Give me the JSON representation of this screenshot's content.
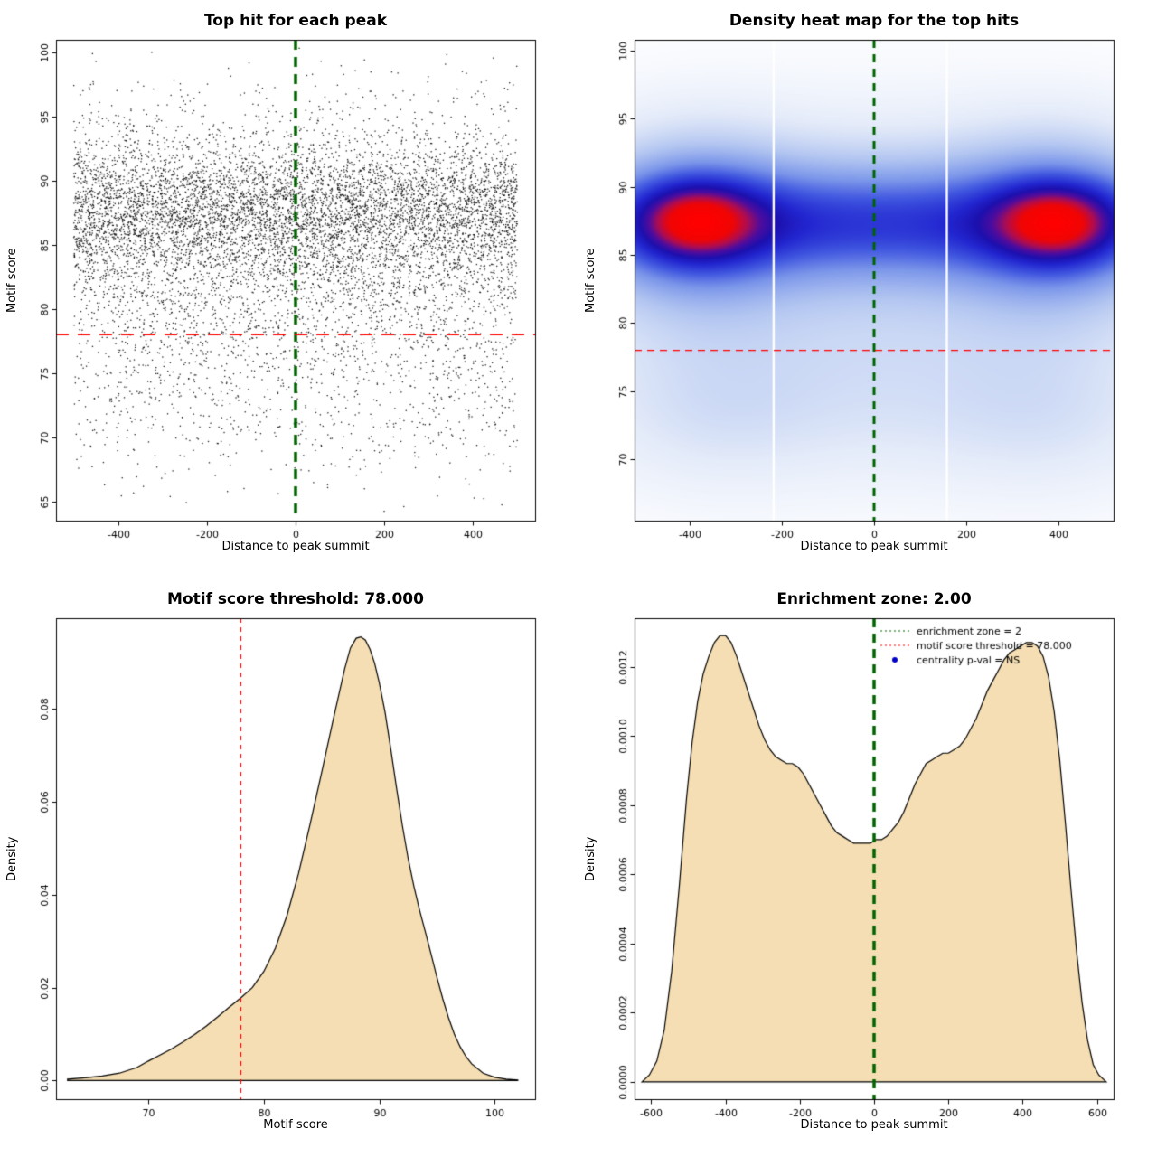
{
  "page": {
    "background": "#ffffff"
  },
  "chart_data": [
    {
      "type": "scatter",
      "title": "Top hit for each peak",
      "xlabel": "Distance to peak summit",
      "ylabel": "Motif score",
      "xlim": [
        -540,
        540
      ],
      "ylim": [
        63.5,
        101
      ],
      "xticks": {
        "values": [
          -400,
          -200,
          0,
          200,
          400
        ],
        "labels": [
          "-400",
          "-200",
          "0",
          "200",
          "400"
        ]
      },
      "yticks": {
        "values": [
          65,
          70,
          75,
          80,
          85,
          90,
          95,
          100
        ],
        "labels": [
          "65",
          "70",
          "75",
          "80",
          "85",
          "90",
          "95",
          "100"
        ]
      },
      "point_color": "#000000",
      "n_points": 9000,
      "seed": 7,
      "x_range": [
        -500,
        500
      ],
      "y_components": [
        {
          "weight": 0.6,
          "mean": 87.9,
          "sd": 2.7
        },
        {
          "weight": 0.22,
          "mean": 83.5,
          "sd": 3.4
        },
        {
          "weight": 0.08,
          "mean": 77.5,
          "sd": 3.2
        },
        {
          "weight": 0.06,
          "mean": 72.5,
          "sd": 3.2
        },
        {
          "weight": 0.04,
          "mean": 94.5,
          "sd": 2.5
        }
      ],
      "y_clip": [
        63.8,
        100.6
      ],
      "vline": {
        "x": 0,
        "color": "#006400",
        "width": 3.5,
        "dash": [
          11,
          8
        ]
      },
      "hline": {
        "y": 78,
        "color": "#ff0000",
        "width": 1.6,
        "dash": [
          14,
          10
        ]
      }
    },
    {
      "type": "heatmap",
      "title": "Density heat map for the top hits",
      "xlabel": "Distance to peak summit",
      "ylabel": "Motif score",
      "xlim": [
        -520,
        520
      ],
      "ylim": [
        65.5,
        100.8
      ],
      "xticks": {
        "values": [
          -400,
          -200,
          0,
          200,
          400
        ],
        "labels": [
          "-400",
          "-200",
          "0",
          "200",
          "400"
        ]
      },
      "yticks": {
        "values": [
          70,
          75,
          80,
          85,
          90,
          95,
          100
        ],
        "labels": [
          "70",
          "75",
          "80",
          "85",
          "90",
          "95",
          "100"
        ]
      },
      "gamma": 0.7,
      "stops": [
        [
          0.0,
          "#ffffff"
        ],
        [
          0.15,
          "#e4ebf9"
        ],
        [
          0.3,
          "#b3c6f1"
        ],
        [
          0.45,
          "#7b96ea"
        ],
        [
          0.57,
          "#4056e0"
        ],
        [
          0.67,
          "#2226d0"
        ],
        [
          0.74,
          "#1c10ae"
        ],
        [
          0.8,
          "#500c9e"
        ],
        [
          0.86,
          "#b00d50"
        ],
        [
          0.92,
          "#f00505"
        ],
        [
          1.0,
          "#ff0000"
        ]
      ],
      "components": [
        {
          "x": -390,
          "y": 87.5,
          "sx": 95,
          "sy": 2.1,
          "amp": 0.62
        },
        {
          "x": 400,
          "y": 87.4,
          "sx": 95,
          "sy": 2.1,
          "amp": 0.62
        },
        {
          "x": -385,
          "y": 87.2,
          "sx": 145,
          "sy": 4.2,
          "amp": 0.4
        },
        {
          "x": 395,
          "y": 87.1,
          "sx": 145,
          "sy": 4.2,
          "amp": 0.4
        },
        {
          "x": 0,
          "y": 87.4,
          "sx": 520,
          "sy": 2.7,
          "amp": 0.6
        },
        {
          "x": 0,
          "y": 86.3,
          "sx": 480,
          "sy": 5.6,
          "amp": 0.25
        },
        {
          "x": 0,
          "y": 74.5,
          "sx": 470,
          "sy": 4.6,
          "amp": 0.13
        },
        {
          "x": -350,
          "y": 73.8,
          "sx": 160,
          "sy": 4.0,
          "amp": 0.07
        },
        {
          "x": 380,
          "y": 73.2,
          "sx": 160,
          "sy": 4.0,
          "amp": 0.07
        }
      ],
      "gap_lines": [
        -218,
        158
      ],
      "vline": {
        "x": 0,
        "color": "#006400",
        "width": 3,
        "dash": [
          9,
          7
        ]
      },
      "hline": {
        "y": 78,
        "color": "#ff0000",
        "width": 1.4,
        "dash": [
          8,
          6
        ]
      }
    },
    {
      "type": "area",
      "title": "Motif score threshold: 78.000",
      "xlabel": "Motif score",
      "ylabel": "Density",
      "xlim": [
        62,
        103.5
      ],
      "ylim": [
        -0.004,
        0.0995
      ],
      "xticks": {
        "values": [
          70,
          80,
          90,
          100
        ],
        "labels": [
          "70",
          "80",
          "90",
          "100"
        ]
      },
      "yticks": {
        "values": [
          0.0,
          0.02,
          0.04,
          0.06,
          0.08
        ],
        "labels": [
          "0.00",
          "0.02",
          "0.04",
          "0.06",
          "0.08"
        ]
      },
      "fill": "#f5deb3",
      "stroke": "#000000",
      "vline": {
        "x": 78,
        "color": "#ff0000",
        "width": 1.4,
        "dash": [
          5,
          5
        ]
      },
      "points": [
        [
          63,
          0.0003
        ],
        [
          64.5,
          0.0006
        ],
        [
          66,
          0.001
        ],
        [
          67.5,
          0.0016
        ],
        [
          69,
          0.0028
        ],
        [
          70,
          0.0042
        ],
        [
          71,
          0.0055
        ],
        [
          72,
          0.0068
        ],
        [
          73,
          0.0083
        ],
        [
          74,
          0.0099
        ],
        [
          75,
          0.0117
        ],
        [
          76,
          0.0137
        ],
        [
          77,
          0.0158
        ],
        [
          78,
          0.0178
        ],
        [
          79,
          0.02
        ],
        [
          80,
          0.0235
        ],
        [
          81,
          0.0285
        ],
        [
          82,
          0.0355
        ],
        [
          83,
          0.0445
        ],
        [
          84,
          0.0551
        ],
        [
          85,
          0.0662
        ],
        [
          86,
          0.0776
        ],
        [
          86.5,
          0.0831
        ],
        [
          87,
          0.0886
        ],
        [
          87.5,
          0.0931
        ],
        [
          88,
          0.0952
        ],
        [
          88.4,
          0.0955
        ],
        [
          88.8,
          0.0948
        ],
        [
          89.2,
          0.0928
        ],
        [
          89.6,
          0.0898
        ],
        [
          90,
          0.0856
        ],
        [
          90.5,
          0.0793
        ],
        [
          91,
          0.0713
        ],
        [
          91.5,
          0.0629
        ],
        [
          92,
          0.0549
        ],
        [
          92.5,
          0.0478
        ],
        [
          93,
          0.0418
        ],
        [
          93.5,
          0.0366
        ],
        [
          94,
          0.0319
        ],
        [
          94.5,
          0.0271
        ],
        [
          95,
          0.0222
        ],
        [
          95.5,
          0.0176
        ],
        [
          96,
          0.0135
        ],
        [
          96.5,
          0.01
        ],
        [
          97,
          0.0073
        ],
        [
          97.5,
          0.0052
        ],
        [
          98,
          0.0036
        ],
        [
          99,
          0.0016
        ],
        [
          100,
          0.0007
        ],
        [
          101,
          0.0003
        ],
        [
          102,
          0.0001
        ]
      ]
    },
    {
      "type": "area",
      "title": "Enrichment zone: 2.00",
      "xlabel": "Distance to peak summit",
      "ylabel": "Density",
      "xlim": [
        -645,
        645
      ],
      "ylim": [
        -5e-05,
        0.00134
      ],
      "xticks": {
        "values": [
          -600,
          -400,
          -200,
          0,
          200,
          400,
          600
        ],
        "labels": [
          "-600",
          "-400",
          "-200",
          "0",
          "200",
          "400",
          "600"
        ]
      },
      "yticks": {
        "values": [
          0.0,
          0.0002,
          0.0004,
          0.0006,
          0.0008,
          0.001,
          0.0012
        ],
        "labels": [
          "0.0000",
          "0.0002",
          "0.0004",
          "0.0006",
          "0.0008",
          "0.0010",
          "0.0012"
        ]
      },
      "fill": "#f5deb3",
      "stroke": "#000000",
      "vline": {
        "x": 0,
        "color": "#006400",
        "width": 3.5,
        "dash": [
          10,
          7
        ]
      },
      "legend": [
        {
          "label": "enrichment zone = 2",
          "color": "#006400",
          "marker": "dotted-line"
        },
        {
          "label": "motif score threshold = 78.000",
          "color": "#ff0000",
          "marker": "dotted-line"
        },
        {
          "label": "centrality p-val = NS",
          "color": "#0000cd",
          "marker": "point"
        }
      ],
      "points": [
        [
          -625,
          0.0
        ],
        [
          -605,
          2e-05
        ],
        [
          -585,
          6e-05
        ],
        [
          -565,
          0.00015
        ],
        [
          -545,
          0.00032
        ],
        [
          -525,
          0.00056
        ],
        [
          -505,
          0.00082
        ],
        [
          -490,
          0.00098
        ],
        [
          -475,
          0.0011
        ],
        [
          -460,
          0.00118
        ],
        [
          -445,
          0.00123
        ],
        [
          -430,
          0.00127
        ],
        [
          -415,
          0.00129
        ],
        [
          -400,
          0.00129
        ],
        [
          -385,
          0.00127
        ],
        [
          -370,
          0.00123
        ],
        [
          -355,
          0.00118
        ],
        [
          -340,
          0.00113
        ],
        [
          -325,
          0.00108
        ],
        [
          -310,
          0.00103
        ],
        [
          -295,
          0.00099
        ],
        [
          -280,
          0.00096
        ],
        [
          -265,
          0.00094
        ],
        [
          -250,
          0.00093
        ],
        [
          -235,
          0.00092
        ],
        [
          -220,
          0.00092
        ],
        [
          -205,
          0.00091
        ],
        [
          -190,
          0.00089
        ],
        [
          -175,
          0.00086
        ],
        [
          -160,
          0.00083
        ],
        [
          -145,
          0.0008
        ],
        [
          -130,
          0.00077
        ],
        [
          -115,
          0.00074
        ],
        [
          -100,
          0.00072
        ],
        [
          -85,
          0.00071
        ],
        [
          -70,
          0.0007
        ],
        [
          -55,
          0.00069
        ],
        [
          -40,
          0.00069
        ],
        [
          -25,
          0.00069
        ],
        [
          -10,
          0.00069
        ],
        [
          5,
          0.0007
        ],
        [
          20,
          0.0007
        ],
        [
          35,
          0.00071
        ],
        [
          50,
          0.00073
        ],
        [
          65,
          0.00075
        ],
        [
          80,
          0.00078
        ],
        [
          95,
          0.00082
        ],
        [
          110,
          0.00086
        ],
        [
          125,
          0.00089
        ],
        [
          140,
          0.00092
        ],
        [
          155,
          0.00093
        ],
        [
          170,
          0.00094
        ],
        [
          185,
          0.00095
        ],
        [
          200,
          0.00095
        ],
        [
          215,
          0.00096
        ],
        [
          230,
          0.00097
        ],
        [
          245,
          0.00099
        ],
        [
          260,
          0.00102
        ],
        [
          275,
          0.00105
        ],
        [
          290,
          0.00109
        ],
        [
          305,
          0.00113
        ],
        [
          320,
          0.00116
        ],
        [
          335,
          0.00119
        ],
        [
          350,
          0.00122
        ],
        [
          365,
          0.00124
        ],
        [
          380,
          0.00125
        ],
        [
          395,
          0.00126
        ],
        [
          410,
          0.00127
        ],
        [
          425,
          0.00127
        ],
        [
          440,
          0.00126
        ],
        [
          455,
          0.00123
        ],
        [
          470,
          0.00117
        ],
        [
          485,
          0.00107
        ],
        [
          500,
          0.00093
        ],
        [
          515,
          0.00075
        ],
        [
          530,
          0.00056
        ],
        [
          545,
          0.00038
        ],
        [
          560,
          0.00023
        ],
        [
          575,
          0.00012
        ],
        [
          590,
          5e-05
        ],
        [
          605,
          2e-05
        ],
        [
          625,
          0.0
        ]
      ]
    }
  ]
}
